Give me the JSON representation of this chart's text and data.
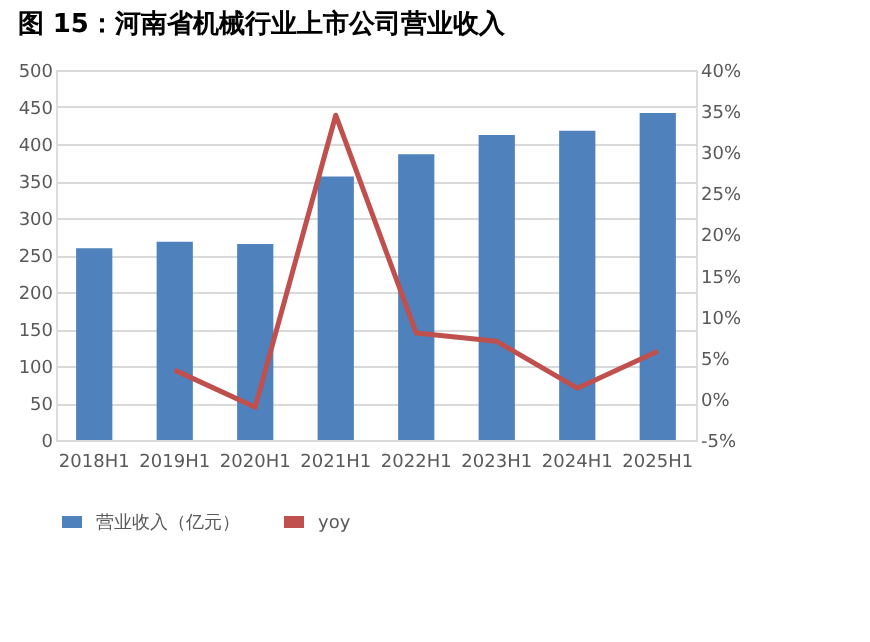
{
  "chart_data": {
    "type": "bar",
    "title": "图 15：河南省机械行业上市公司营业收入",
    "categories": [
      "2018H1",
      "2019H1",
      "2020H1",
      "2021H1",
      "2022H1",
      "2023H1",
      "2024H1",
      "2025H1"
    ],
    "series": [
      {
        "name": "营业收入（亿元）",
        "color": "#4f81bd",
        "values": [
          259,
          268,
          265,
          356,
          386,
          412,
          418,
          442
        ]
      },
      {
        "name": "yoy",
        "type": "line",
        "axis": "y2",
        "color": "#c0504d",
        "values": [
          null,
          3.5,
          -1,
          34.5,
          8,
          7,
          1.3,
          5.8
        ]
      }
    ],
    "ylim": [
      0,
      500
    ],
    "yticks": [
      0,
      50,
      100,
      150,
      200,
      250,
      300,
      350,
      400,
      450,
      500
    ],
    "y2lim": [
      -5,
      40
    ],
    "y2ticks": [
      {
        "value": -5,
        "label": "-5%"
      },
      {
        "value": 0,
        "label": "0%"
      },
      {
        "value": 5,
        "label": "5%"
      },
      {
        "value": 10,
        "label": "10%"
      },
      {
        "value": 15,
        "label": "15%"
      },
      {
        "value": 20,
        "label": "20%"
      },
      {
        "value": 25,
        "label": "25%"
      },
      {
        "value": 30,
        "label": "30%"
      },
      {
        "value": 35,
        "label": "35%"
      },
      {
        "value": 40,
        "label": "40%"
      }
    ],
    "grid": "y",
    "legend": "bottom",
    "marker": "none",
    "line_style": "solid"
  }
}
